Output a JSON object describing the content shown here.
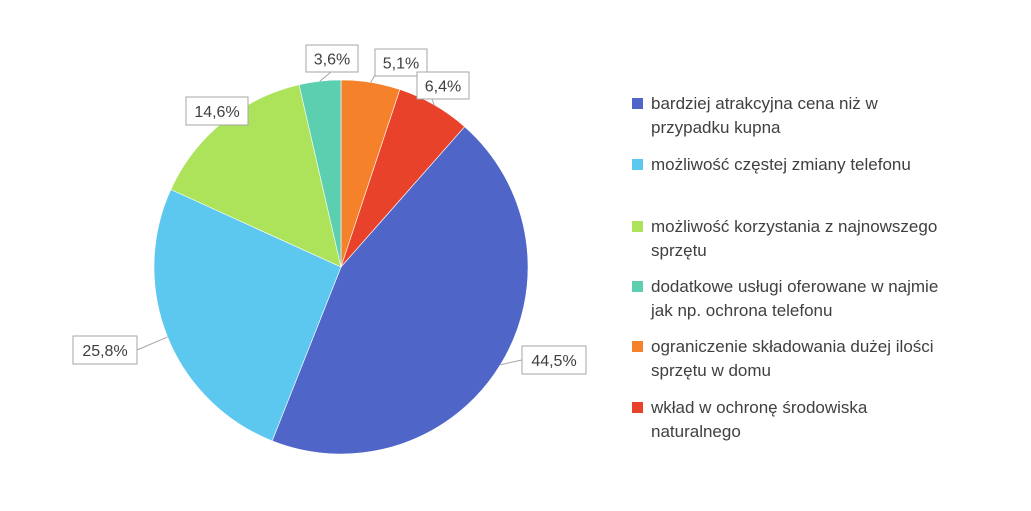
{
  "chart_data": {
    "type": "pie",
    "categories": [
      "bardziej atrakcyjna cena niż w przypadku kupna",
      "możliwość częstej zmiany telefonu",
      "możliwość korzystania z najnowszego sprzętu",
      "dodatkowe usługi oferowane w najmie jak np. ochrona telefonu",
      "ograniczenie składowania dużej ilości sprzętu w domu",
      "wkład w ochronę środowiska naturalnego"
    ],
    "values": [
      44.5,
      25.8,
      14.6,
      3.6,
      5.1,
      6.4
    ],
    "data_labels": [
      "44,5%",
      "25,8%",
      "14,6%",
      "3,6%",
      "5,1%",
      "6,4%"
    ],
    "colors": [
      "#4F66C8",
      "#5CC8F0",
      "#ACE35A",
      "#5BCFB0",
      "#F5822A",
      "#E8432A"
    ],
    "legend_position": "right"
  },
  "legend": {
    "items": [
      {
        "lines": [
          "bardziej atrakcyjna cena niż w",
          "przypadku kupna"
        ]
      },
      {
        "lines": [
          "możliwość częstej zmiany telefonu"
        ]
      },
      {
        "lines": [
          "możliwość korzystania z najnowszego",
          "sprzętu"
        ]
      },
      {
        "lines": [
          "dodatkowe usługi oferowane w najmie",
          "jak np. ochrona telefonu"
        ]
      },
      {
        "lines": [
          "ograniczenie składowania dużej ilości",
          "sprzętu w domu"
        ]
      },
      {
        "lines": [
          "wkład w ochronę środowiska",
          "naturalnego"
        ]
      }
    ]
  }
}
